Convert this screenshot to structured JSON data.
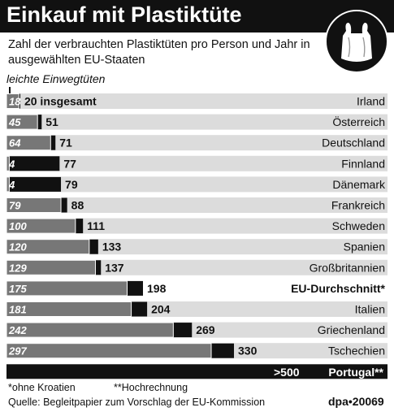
{
  "title": "Einkauf mit Plastiktüte",
  "subtitle": "Zahl der verbrauchten Plastiktüten pro Person und Jahr in ausgewählten EU-Staaten",
  "legend_label": "leichte Einwegtüten",
  "logo_icon": "plastic-bag-icon",
  "colors": {
    "total": "#111111",
    "light": "#777777",
    "band": "#dcdcdc",
    "title_bg": "#111111"
  },
  "chart_data": {
    "type": "bar",
    "orientation": "horizontal",
    "xlim": [
      0,
      330
    ],
    "series": [
      {
        "name": "leichte Einwegtüten",
        "values": [
          18,
          45,
          64,
          4,
          4,
          79,
          100,
          120,
          129,
          175,
          181,
          242,
          297
        ]
      },
      {
        "name": "insgesamt",
        "values": [
          20,
          51,
          71,
          77,
          79,
          88,
          111,
          133,
          137,
          198,
          204,
          269,
          330
        ]
      }
    ],
    "categories": [
      "Irland",
      "Österreich",
      "Deutschland",
      "Finnland",
      "Dänemark",
      "Frankreich",
      "Schweden",
      "Spanien",
      "Großbritannien",
      "EU-Durchschnitt*",
      "Italien",
      "Griechenland",
      "Tschechien"
    ],
    "first_total_suffix": "insgesamt",
    "highlight": "EU-Durchschnitt*",
    "extra_row": {
      "value_label": ">500",
      "country": "Portugal**"
    }
  },
  "footnotes": [
    "*ohne Kroatien",
    "**Hochrechnung"
  ],
  "source": "Quelle: Begleitpapier zum Vorschlag der EU-Kommission",
  "credit": "dpa•20069"
}
